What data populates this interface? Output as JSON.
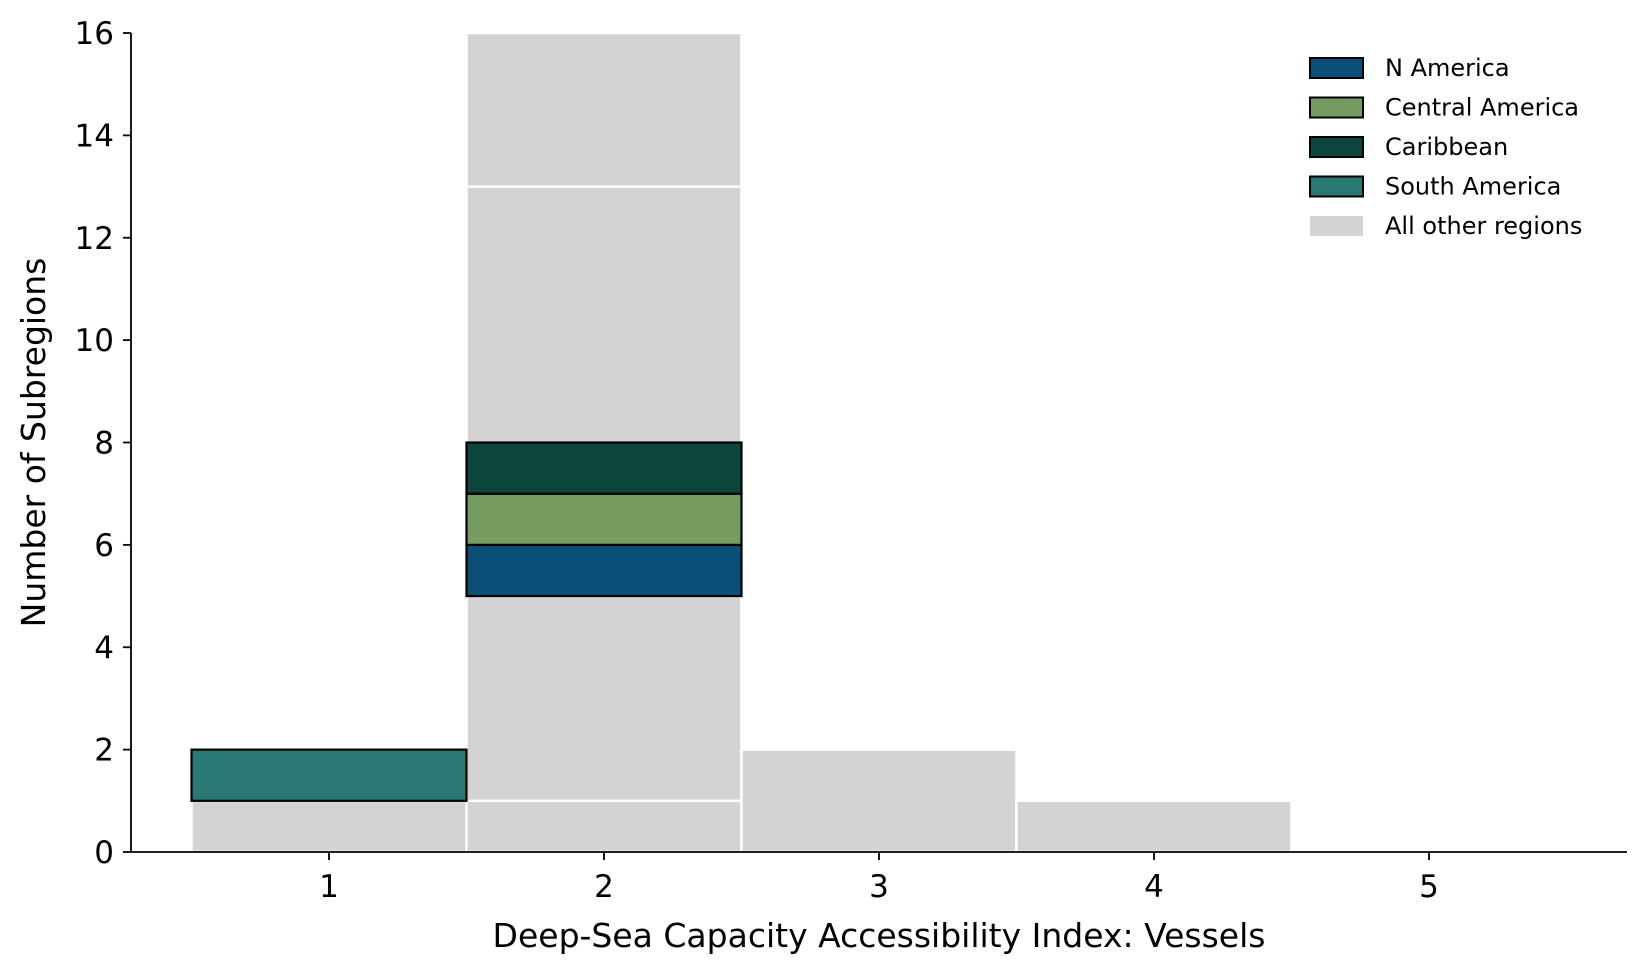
{
  "chart_data": {
    "type": "bar",
    "stacked": true,
    "title": "",
    "xlabel": "Deep-Sea Capacity Accessibility Index: Vessels",
    "ylabel": "Number of Subregions",
    "categories": [
      "1",
      "2",
      "3",
      "4",
      "5"
    ],
    "xlim": [
      0.28,
      5.72
    ],
    "ylim": [
      0,
      16
    ],
    "yticks": [
      0,
      2,
      4,
      6,
      8,
      10,
      12,
      14,
      16
    ],
    "grid": false,
    "legend_position": "top-right",
    "segments": [
      {
        "category": "1",
        "from": 0,
        "to": 1,
        "group": "All other regions"
      },
      {
        "category": "1",
        "from": 1,
        "to": 2,
        "group": "South America"
      },
      {
        "category": "2",
        "from": 0,
        "to": 1,
        "group": "All other regions"
      },
      {
        "category": "2",
        "from": 1,
        "to": 5,
        "group": "All other regions"
      },
      {
        "category": "2",
        "from": 5,
        "to": 6,
        "group": "N America"
      },
      {
        "category": "2",
        "from": 6,
        "to": 7,
        "group": "Central America"
      },
      {
        "category": "2",
        "from": 7,
        "to": 8,
        "group": "Caribbean"
      },
      {
        "category": "2",
        "from": 8,
        "to": 13,
        "group": "All other regions"
      },
      {
        "category": "2",
        "from": 13,
        "to": 16,
        "group": "All other regions"
      },
      {
        "category": "3",
        "from": 0,
        "to": 2,
        "group": "All other regions"
      },
      {
        "category": "4",
        "from": 0,
        "to": 1,
        "group": "All other regions"
      }
    ],
    "legend": [
      {
        "name": "N America",
        "color": "#0b4f79"
      },
      {
        "name": "Central America",
        "color": "#779c61"
      },
      {
        "name": "Caribbean",
        "color": "#0b453b"
      },
      {
        "name": "South America",
        "color": "#2a7873"
      },
      {
        "name": "All other regions",
        "color": "#d3d3d3"
      }
    ]
  }
}
